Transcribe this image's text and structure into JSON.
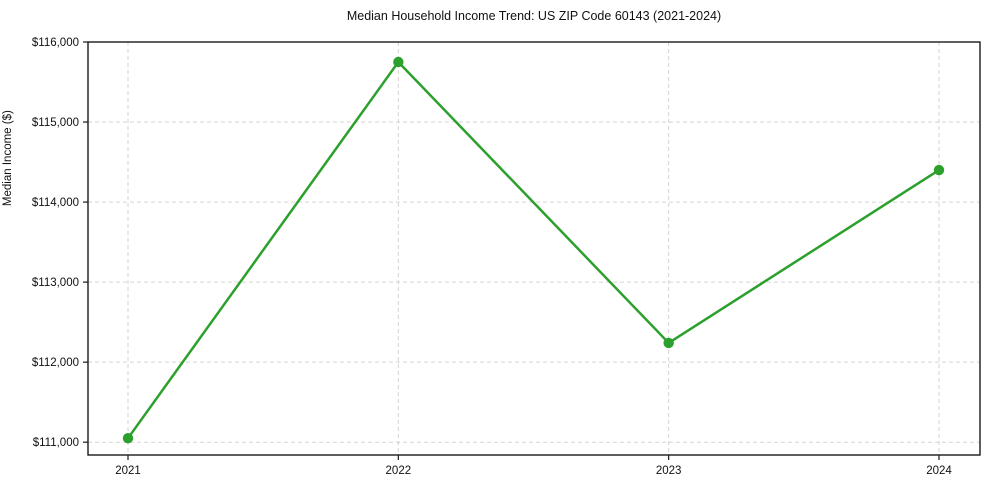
{
  "title": "Median Household Income Trend: US ZIP Code 60143 (2021-2024)",
  "ylabel": "Median Income ($)",
  "chart_data": {
    "type": "line",
    "x": [
      2021,
      2022,
      2023,
      2024
    ],
    "series": [
      {
        "name": "Median Household Income",
        "values": [
          111050,
          115750,
          112240,
          114400
        ]
      }
    ],
    "xtick_labels": [
      "2021",
      "2022",
      "2023",
      "2024"
    ],
    "yticks": [
      111000,
      112000,
      113000,
      114000,
      115000,
      116000
    ],
    "ytick_labels": [
      "$111,000",
      "$112,000",
      "$113,000",
      "$114,000",
      "$115,000",
      "$116,000"
    ],
    "ylim": [
      110840,
      116000
    ],
    "title": "Median Household Income Trend: US ZIP Code 60143 (2021-2024)",
    "xlabel": "",
    "ylabel": "Median Income ($)",
    "grid": "dashed-both",
    "legend": "none",
    "line_color": "#2ca02c",
    "marker": "circle",
    "grid_color": "#cccccc",
    "spine_color": "#1a1a1a",
    "background_color": "#ffffff"
  }
}
